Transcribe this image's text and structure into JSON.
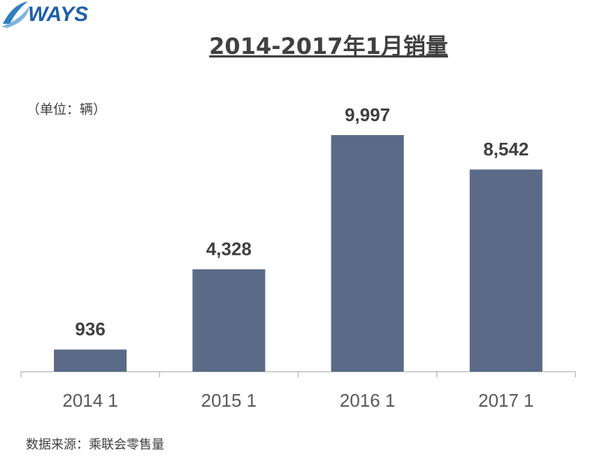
{
  "logo": "WAYS",
  "chart_data": {
    "type": "bar",
    "title": "2014-2017年1月销量",
    "unit_label": "（单位：辆）",
    "categories": [
      "2014 1",
      "2015 1",
      "2016 1",
      "2017 1"
    ],
    "values": [
      936,
      4328,
      9997,
      8542
    ],
    "value_labels": [
      "936",
      "4,328",
      "9,997",
      "8,542"
    ],
    "color": "#5a6a87",
    "source": "数据来源：乘联会零售量"
  }
}
